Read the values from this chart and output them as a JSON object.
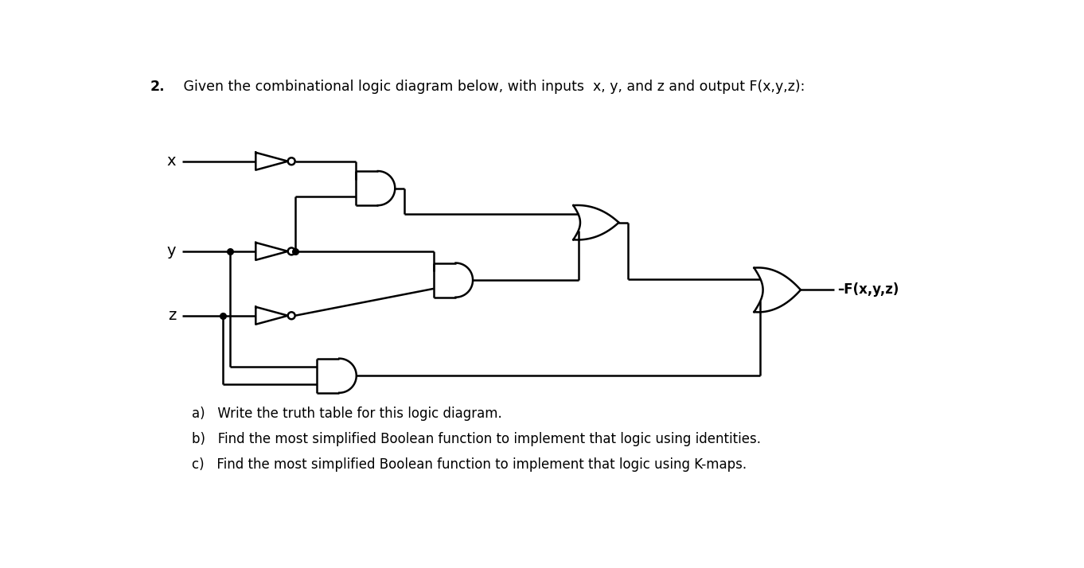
{
  "bg": "#ffffff",
  "lc": "#000000",
  "lw": 1.8,
  "title_num": "2.",
  "title_rest": "   Given the combinational logic diagram below, with inputs  x, y, and z and output F(x,y,z):",
  "q_a": "a)   Write the truth table for this logic diagram.",
  "q_b": "b)   Find the most simplified Boolean function to implement that logic using identities.",
  "q_c": "c)   Find the most simplified Boolean function to implement that logic using K-maps.",
  "out_lbl": "–F(x,y,z)"
}
